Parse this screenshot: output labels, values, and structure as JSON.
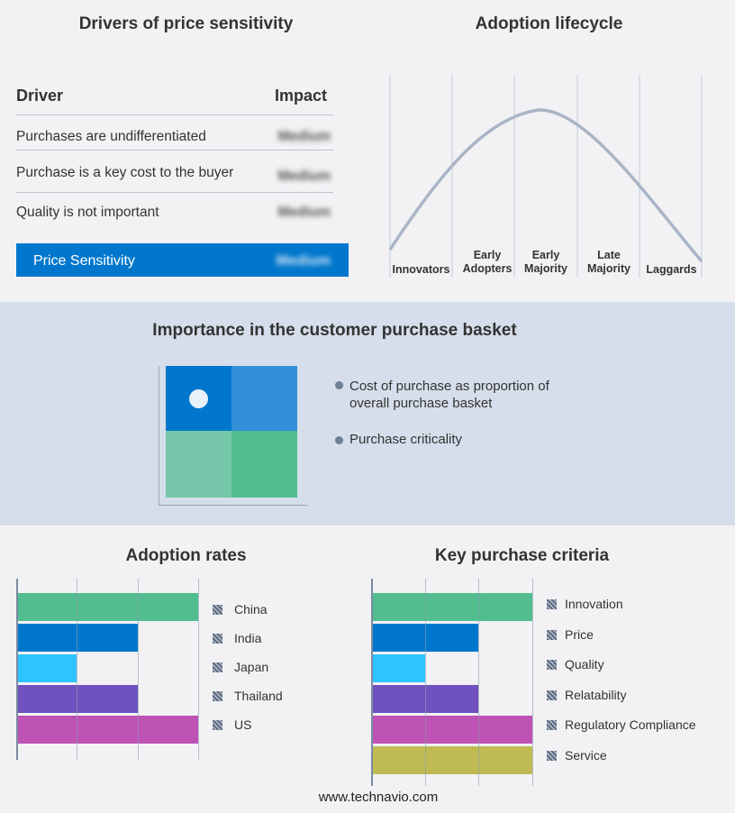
{
  "drivers": {
    "title": "Drivers of price sensitivity",
    "col_driver": "Driver",
    "col_impact": "Impact",
    "rows": [
      {
        "driver": "Purchases are undifferentiated",
        "impact": "Medium"
      },
      {
        "driver": "Purchase is a key cost to the buyer",
        "impact": "Medium"
      },
      {
        "driver": "Quality is not important",
        "impact": "Medium"
      }
    ],
    "summary": {
      "label": "Price Sensitivity",
      "impact": "Medium"
    },
    "accent": "#0077cc"
  },
  "lifecycle": {
    "title": "Adoption lifecycle",
    "stages": [
      "Innovators",
      "Early Adopters",
      "Early Majority",
      "Late Majority",
      "Laggards"
    ],
    "curve_color": "#a9b5c6"
  },
  "basket": {
    "title": "Importance in the customer purchase basket",
    "legend": [
      "Cost of purchase as proportion of overall purchase basket",
      "Purchase criticality"
    ],
    "colors": [
      "#0077cc",
      "#3390d8",
      "#76c7a9",
      "#52bd8f"
    ]
  },
  "adoption_rates": {
    "title": "Adoption rates",
    "max": 3,
    "items": [
      {
        "label": "China",
        "value": 3,
        "color": "#52bd8f"
      },
      {
        "label": "India",
        "value": 2,
        "color": "#0077cc"
      },
      {
        "label": "Japan",
        "value": 1,
        "color": "#2ec4ff"
      },
      {
        "label": "Thailand",
        "value": 2,
        "color": "#6f52bd"
      },
      {
        "label": "US",
        "value": 3,
        "color": "#bf52b5"
      }
    ]
  },
  "kpc": {
    "title": "Key purchase criteria",
    "max": 3,
    "items": [
      {
        "label": "Innovation",
        "value": 3,
        "color": "#52bd8f"
      },
      {
        "label": "Price",
        "value": 2,
        "color": "#0077cc"
      },
      {
        "label": "Quality",
        "value": 1,
        "color": "#2ec4ff"
      },
      {
        "label": "Relatability",
        "value": 2,
        "color": "#6f52bd"
      },
      {
        "label": "Regulatory Compliance",
        "value": 3,
        "color": "#bf52b5"
      },
      {
        "label": "Service",
        "value": 3,
        "color": "#bfbb52"
      }
    ]
  },
  "footer": "www.technavio.com"
}
